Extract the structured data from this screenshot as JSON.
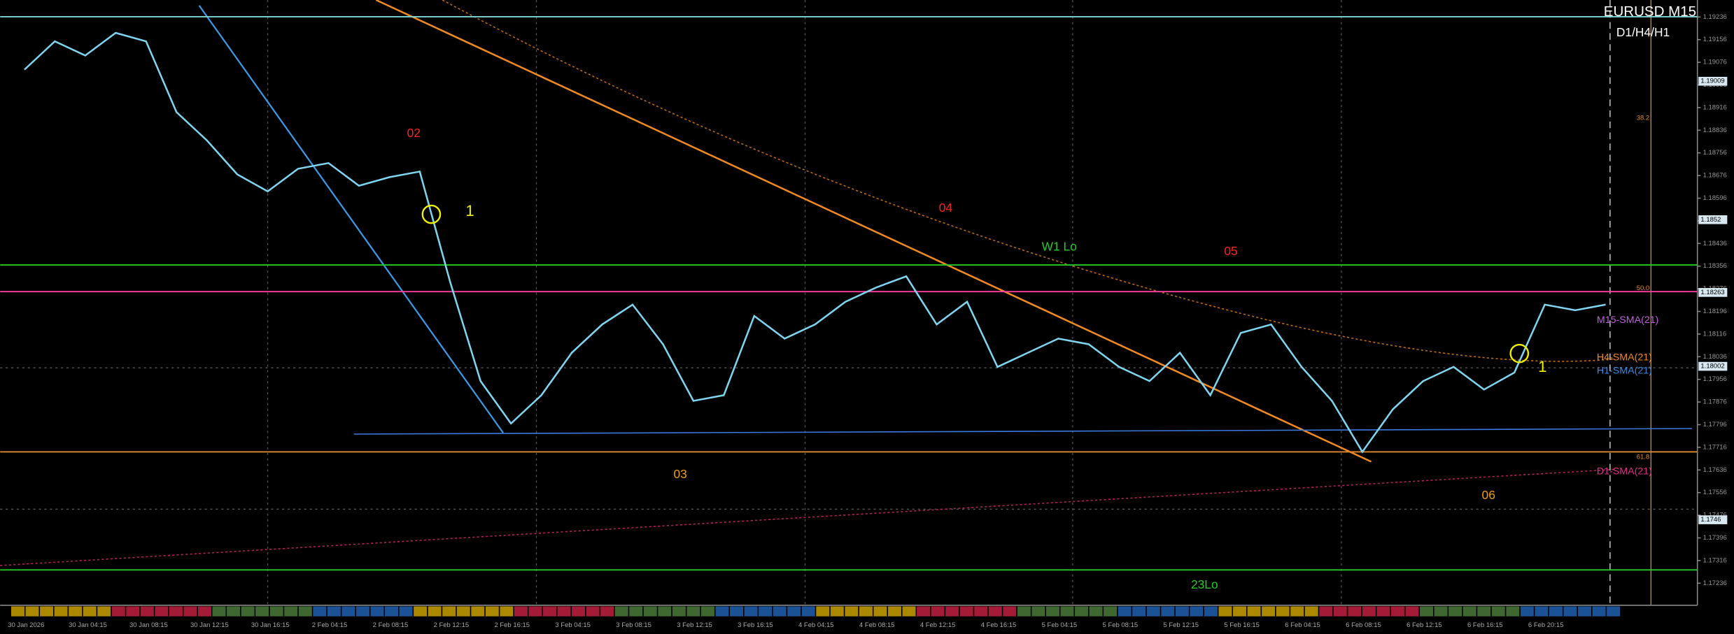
{
  "chart_data": {
    "type": "line",
    "title": "EURUSD M15",
    "subtitle": "D1/H4/H1",
    "categories": [
      "30 Jan 2026",
      null,
      "30 Jan 04:15",
      null,
      "30 Jan 08:15",
      null,
      "30 Jan 12:15",
      null,
      "30 Jan 16:15",
      null,
      "2 Feb 04:15",
      null,
      "2 Feb 08:15",
      null,
      "2 Feb 12:15",
      null,
      "2 Feb 16:15",
      null,
      "3 Feb 04:15",
      null,
      "3 Feb 08:15",
      null,
      "3 Feb 12:15",
      null,
      "3 Feb 16:15",
      null,
      "4 Feb 04:15",
      null,
      "4 Feb 08:15",
      null,
      "4 Feb 12:15",
      null,
      "4 Feb 16:15",
      null,
      "5 Feb 04:15",
      null,
      "5 Feb 08:15",
      null,
      "5 Feb 12:15",
      null,
      "5 Feb 16:15",
      null,
      "6 Feb 04:15",
      null,
      "6 Feb 08:15",
      null,
      "6 Feb 12:15",
      null,
      "6 Feb 16:15",
      null,
      "6 Feb 20:15",
      null,
      null,
      null
    ],
    "series": [
      {
        "name": "EURUSD",
        "color": "#7fd4f0",
        "values": [
          1.1905,
          1.1915,
          1.191,
          1.1918,
          1.1915,
          1.189,
          1.188,
          1.1868,
          1.1862,
          1.187,
          1.1872,
          1.1864,
          1.1867,
          1.1869,
          1.183,
          1.1795,
          1.178,
          1.179,
          1.1805,
          1.1815,
          1.1822,
          1.1808,
          1.1788,
          1.179,
          1.1818,
          1.181,
          1.1815,
          1.1823,
          1.1828,
          1.1832,
          1.1815,
          1.1823,
          1.18,
          1.1805,
          1.181,
          1.1808,
          1.18,
          1.1795,
          1.1805,
          1.179,
          1.1812,
          1.1815,
          1.18,
          1.1788,
          1.177,
          1.1785,
          1.1795,
          1.18,
          1.1792,
          1.1798,
          1.1822,
          1.182,
          1.1822,
          null
        ]
      }
    ],
    "ylim": [
      1.17158,
      1.19296
    ],
    "yticks": [
      1.19236,
      1.19156,
      1.19076,
      1.18996,
      1.18916,
      1.18836,
      1.18756,
      1.18676,
      1.18596,
      1.18516,
      1.18436,
      1.18356,
      1.18276,
      1.18196,
      1.18116,
      1.18036,
      1.17956,
      1.17876,
      1.17796,
      1.17716,
      1.17636,
      1.17556,
      1.17476,
      1.17396,
      1.17316,
      1.17236
    ],
    "grid": false,
    "levels": [
      {
        "value": 1.19237,
        "color": "#7fd4d4"
      },
      {
        "value": 1.1836,
        "color": "#22cc22"
      },
      {
        "value": 1.18266,
        "color": "#ff3fa0"
      },
      {
        "value": 1.177,
        "color": "#e08a30"
      },
      {
        "value": 1.17283,
        "color": "#22cc22"
      }
    ],
    "price_boxes": [
      1.19009,
      1.1852,
      1.18263,
      1.18002,
      1.1746
    ],
    "annotations": [
      {
        "text": "02",
        "color": "#ff2020"
      },
      {
        "text": "04",
        "color": "#ff2020"
      },
      {
        "text": "05",
        "color": "#ff2020"
      },
      {
        "text": "03",
        "color": "#f0a000"
      },
      {
        "text": "06",
        "color": "#f0a000"
      },
      {
        "text": "W1 Lo",
        "color": "#22cc22"
      },
      {
        "text": "23Lo",
        "color": "#22cc22"
      },
      {
        "text": "1",
        "color": "#f0f000"
      },
      {
        "text": "1",
        "color": "#f0f000"
      },
      {
        "text": "M15-SMA(21)",
        "color": "#c060e0"
      },
      {
        "text": "H4-SMA(21)",
        "color": "#f08a20"
      },
      {
        "text": "H1-SMA(21)",
        "color": "#3a8ae0"
      },
      {
        "text": "D1-SMA(21)",
        "color": "#e0308a"
      },
      {
        "text": "38.2",
        "color": "#e08a30"
      },
      {
        "text": "50.0",
        "color": "#e08a30"
      },
      {
        "text": "61.8",
        "color": "#e08a30"
      }
    ]
  }
}
